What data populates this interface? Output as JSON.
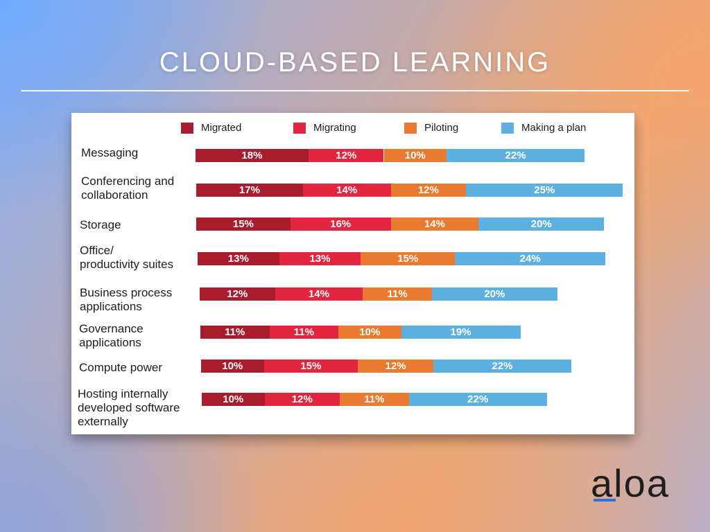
{
  "page": {
    "title": "CLOUD-BASED LEARNING",
    "logo_text": "aloa"
  },
  "colors": {
    "migrated": "#a91c2d",
    "migrating": "#e3263f",
    "piloting": "#ea7a30",
    "making_a_plan": "#5db1e0",
    "logo_accent": "#2f6fd6"
  },
  "chart_data": {
    "type": "bar",
    "orientation": "horizontal",
    "stacked": true,
    "title": "",
    "xlabel": "",
    "ylabel": "",
    "legend_position": "top",
    "grid": false,
    "categories": [
      "Messaging",
      "Conferencing and\ncollaboration",
      "Storage",
      "Office/\nproductivity suites",
      "Business process\napplications",
      "Governance\napplications",
      "Compute power",
      "Hosting internally\ndeveloped software\nexternally"
    ],
    "series": [
      {
        "name": "Migrated",
        "values": [
          18,
          17,
          15,
          13,
          12,
          11,
          10,
          10
        ],
        "labels": [
          "18%",
          "17%",
          "15%",
          "13%",
          "12%",
          "11%",
          "10%",
          "10%"
        ]
      },
      {
        "name": "Migrating",
        "values": [
          12,
          14,
          16,
          13,
          14,
          11,
          15,
          12
        ],
        "labels": [
          "12%",
          "14%",
          "16%",
          "13%",
          "14%",
          "11%",
          "15%",
          "12%"
        ]
      },
      {
        "name": "Piloting",
        "values": [
          10,
          12,
          14,
          15,
          11,
          10,
          12,
          11
        ],
        "labels": [
          "10%",
          "12%",
          "14%",
          "15%",
          "11%",
          "10%",
          "12%",
          "11%"
        ]
      },
      {
        "name": "Making a plan",
        "values": [
          22,
          25,
          20,
          24,
          20,
          19,
          22,
          22
        ],
        "labels": [
          "22%",
          "25%",
          "20%",
          "24%",
          "20%",
          "19%",
          "22%",
          "22%"
        ]
      }
    ]
  }
}
